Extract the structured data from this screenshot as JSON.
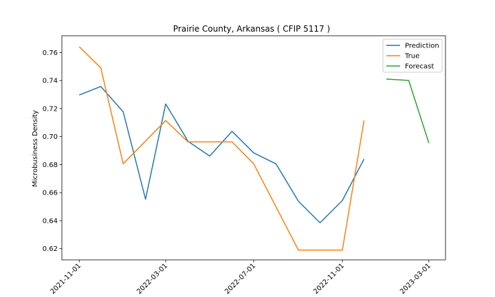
{
  "chart_data": {
    "type": "line",
    "title": "Prairie County, Arkansas ( CFIP 5117 )",
    "xlabel": "",
    "ylabel": "Microbusiness Density",
    "x_tick_labels": [
      "2021-11-01",
      "2022-03-01",
      "2022-07-01",
      "2022-11-01",
      "2023-03-01"
    ],
    "y_tick_labels": [
      "0.62",
      "0.64",
      "0.66",
      "0.68",
      "0.70",
      "0.72",
      "0.74",
      "0.76"
    ],
    "ylim": [
      0.612,
      0.772
    ],
    "xlim": [
      "2021-10-08",
      "2023-03-24"
    ],
    "legend_position": "top-right",
    "grid": false,
    "series": [
      {
        "name": "Prediction",
        "color": "#1f77b4",
        "x": [
          "2021-11-01",
          "2021-12-01",
          "2022-01-01",
          "2022-02-01",
          "2022-03-01",
          "2022-04-01",
          "2022-05-01",
          "2022-06-01",
          "2022-07-01",
          "2022-08-01",
          "2022-09-01",
          "2022-10-01",
          "2022-11-01",
          "2022-12-01"
        ],
        "values": [
          0.7297,
          0.7358,
          0.7177,
          0.6553,
          0.7233,
          0.6966,
          0.6861,
          0.7038,
          0.6884,
          0.6805,
          0.6539,
          0.6385,
          0.6544,
          0.684
        ]
      },
      {
        "name": "True",
        "color": "#ff7f0e",
        "x": [
          "2021-11-01",
          "2021-12-01",
          "2022-01-01",
          "2022-03-01",
          "2022-04-01",
          "2022-06-01",
          "2022-07-01",
          "2022-09-01",
          "2022-11-01",
          "2022-12-01"
        ],
        "values": [
          0.7642,
          0.7491,
          0.6806,
          0.7115,
          0.6962,
          0.6962,
          0.6806,
          0.619,
          0.619,
          0.7115
        ]
      },
      {
        "name": "Forecast",
        "color": "#2ca02c",
        "x": [
          "2023-01-01",
          "2023-02-01",
          "2023-03-01"
        ],
        "values": [
          0.7411,
          0.7401,
          0.6953
        ]
      }
    ]
  }
}
